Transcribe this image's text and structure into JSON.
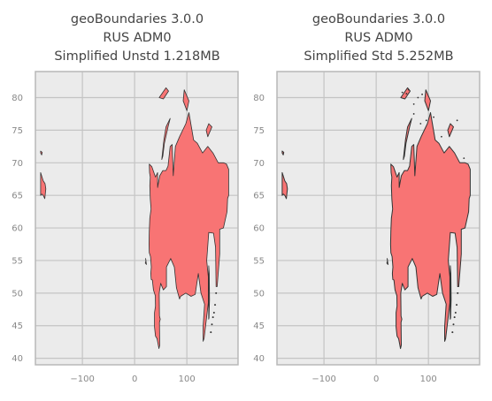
{
  "chart_data": [
    {
      "type": "map",
      "title": [
        "geoBoundaries 3.0.0",
        "RUS ADM0",
        "Simplified Unstd 1.218MB"
      ],
      "xlabel": "",
      "ylabel": "",
      "xlim": [
        -190,
        198
      ],
      "ylim": [
        39,
        84
      ],
      "xticks": [
        -100,
        0,
        100
      ],
      "yticks": [
        40,
        45,
        50,
        55,
        60,
        65,
        70,
        75,
        80
      ],
      "grid": true,
      "fill_color": "#f87474",
      "edge_color": "#333333"
    },
    {
      "type": "map",
      "title": [
        "geoBoundaries 3.0.0",
        "RUS ADM0",
        "Simplified Std 5.252MB"
      ],
      "xlabel": "",
      "ylabel": "",
      "xlim": [
        -190,
        198
      ],
      "ylim": [
        39,
        84
      ],
      "xticks": [
        -100,
        0,
        100
      ],
      "yticks": [
        40,
        45,
        50,
        55,
        60,
        65,
        70,
        75,
        80
      ],
      "grid": true,
      "fill_color": "#f87474",
      "edge_color": "#333333"
    }
  ],
  "colors": {
    "plot_background": "#ebebeb",
    "grid": "#c4c4c4",
    "frame": "#b8b8b8",
    "tick_label": "#888888",
    "title": "#444444"
  }
}
